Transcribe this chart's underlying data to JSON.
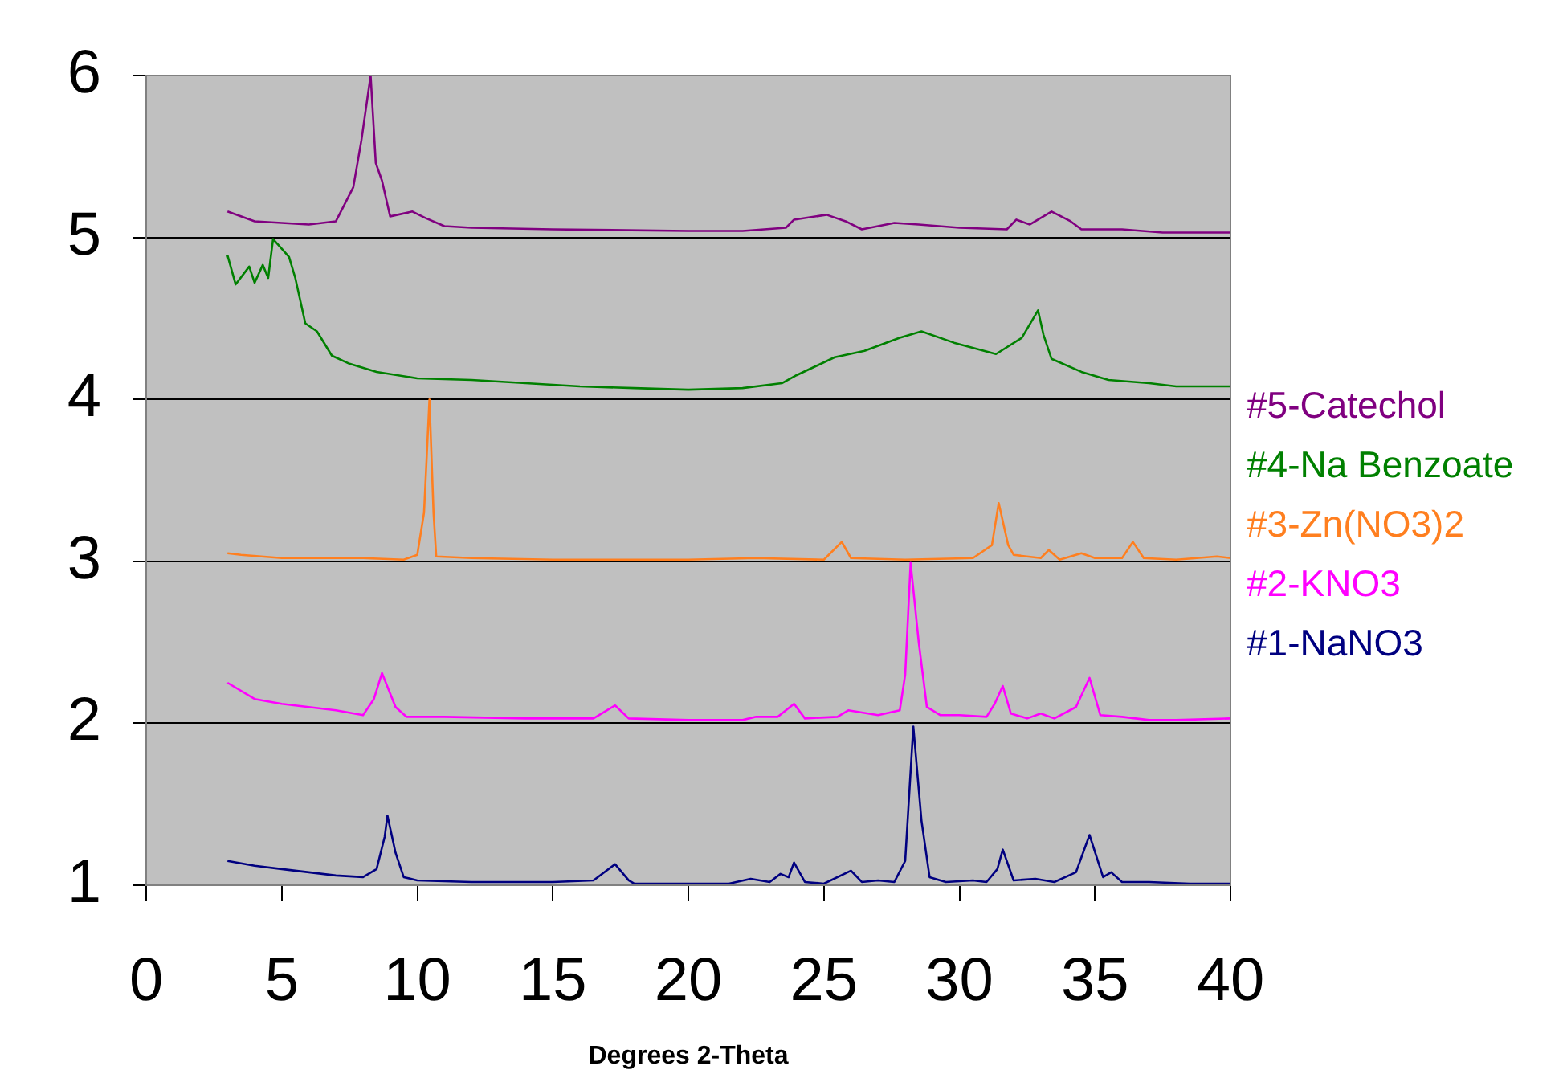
{
  "chart_data": {
    "type": "line",
    "xlabel": "Degrees 2-Theta",
    "xlim": [
      0,
      40
    ],
    "xticks": [
      0,
      5,
      10,
      15,
      20,
      25,
      30,
      35,
      40
    ],
    "ylim": [
      1,
      6
    ],
    "yticks": [
      1,
      2,
      3,
      4,
      5,
      6
    ],
    "grid": "y",
    "legend": "right",
    "marker": "none",
    "line_style": "solid",
    "series": [
      {
        "name": "#1-NaNO3",
        "color": "#000080",
        "x": [
          3,
          4,
          5,
          6,
          7,
          8,
          8.5,
          8.8,
          8.9,
          9.2,
          9.5,
          10,
          12,
          15,
          16.5,
          17.3,
          17.8,
          18,
          20,
          21.5,
          22.3,
          23,
          23.4,
          23.7,
          23.9,
          24.3,
          25,
          26,
          26.4,
          27,
          27.6,
          28,
          28.3,
          28.6,
          28.9,
          29.5,
          30.5,
          31,
          31.4,
          31.6,
          32,
          32.8,
          33.5,
          34.3,
          34.8,
          35.3,
          35.6,
          36,
          37,
          38.5,
          40
        ],
        "values": [
          1.15,
          1.12,
          1.1,
          1.08,
          1.06,
          1.05,
          1.1,
          1.3,
          1.43,
          1.2,
          1.05,
          1.03,
          1.02,
          1.02,
          1.03,
          1.13,
          1.03,
          1.01,
          1.01,
          1.01,
          1.04,
          1.02,
          1.07,
          1.05,
          1.14,
          1.02,
          1.01,
          1.09,
          1.02,
          1.03,
          1.02,
          1.15,
          1.98,
          1.4,
          1.05,
          1.02,
          1.03,
          1.02,
          1.1,
          1.22,
          1.03,
          1.04,
          1.02,
          1.08,
          1.31,
          1.05,
          1.08,
          1.02,
          1.02,
          1.01,
          1.01
        ]
      },
      {
        "name": "#2-KNO3",
        "color": "#ff00ff",
        "x": [
          3,
          4,
          5,
          6,
          7,
          8,
          8.4,
          8.7,
          9.2,
          9.6,
          11,
          14,
          16.5,
          17.3,
          17.8,
          20,
          22,
          22.5,
          23.3,
          23.9,
          24.3,
          25.5,
          25.9,
          27,
          27.8,
          28,
          28.2,
          28.5,
          28.8,
          29.3,
          30,
          31,
          31.3,
          31.6,
          31.9,
          32.5,
          33,
          33.5,
          34.3,
          34.8,
          35.2,
          36,
          37,
          38,
          40
        ],
        "values": [
          2.25,
          2.15,
          2.12,
          2.1,
          2.08,
          2.05,
          2.15,
          2.31,
          2.1,
          2.04,
          2.04,
          2.03,
          2.03,
          2.11,
          2.03,
          2.02,
          2.02,
          2.04,
          2.04,
          2.12,
          2.03,
          2.04,
          2.08,
          2.05,
          2.08,
          2.3,
          2.99,
          2.5,
          2.1,
          2.05,
          2.05,
          2.04,
          2.12,
          2.23,
          2.06,
          2.03,
          2.06,
          2.03,
          2.1,
          2.28,
          2.05,
          2.04,
          2.02,
          2.02,
          2.03
        ]
      },
      {
        "name": "#3-Zn(NO3)2",
        "color": "#ff7f1f",
        "x": [
          3,
          3.5,
          5,
          8,
          9.5,
          10,
          10.25,
          10.45,
          10.6,
          10.7,
          12,
          15,
          20,
          22.5,
          25,
          25.66,
          26,
          28,
          30.5,
          31.2,
          31.45,
          31.8,
          32,
          33,
          33.3,
          33.7,
          34.5,
          35,
          36,
          36.4,
          36.8,
          38,
          39.5,
          40
        ],
        "values": [
          3.05,
          3.04,
          3.02,
          3.02,
          3.01,
          3.04,
          3.3,
          4.0,
          3.3,
          3.03,
          3.02,
          3.01,
          3.01,
          3.02,
          3.01,
          3.12,
          3.02,
          3.01,
          3.02,
          3.1,
          3.36,
          3.1,
          3.04,
          3.02,
          3.07,
          3.01,
          3.05,
          3.02,
          3.02,
          3.12,
          3.02,
          3.01,
          3.03,
          3.02
        ]
      },
      {
        "name": "#4-Na Benzoate",
        "color": "#008000",
        "x": [
          3,
          3.3,
          3.8,
          4,
          4.3,
          4.5,
          4.68,
          5,
          5.27,
          5.5,
          5.87,
          6.3,
          6.85,
          7.5,
          8.5,
          10,
          12,
          14,
          16,
          18,
          20,
          22,
          23.45,
          24,
          25.4,
          26.5,
          27.8,
          28.6,
          29.8,
          31.35,
          32.3,
          32.9,
          33.1,
          33.4,
          34.5,
          35.5,
          37,
          38,
          40
        ],
        "values": [
          4.89,
          4.71,
          4.82,
          4.72,
          4.83,
          4.75,
          4.99,
          4.93,
          4.88,
          4.75,
          4.47,
          4.42,
          4.27,
          4.22,
          4.17,
          4.13,
          4.12,
          4.1,
          4.08,
          4.07,
          4.06,
          4.07,
          4.1,
          4.15,
          4.26,
          4.3,
          4.38,
          4.42,
          4.35,
          4.28,
          4.38,
          4.55,
          4.4,
          4.25,
          4.17,
          4.12,
          4.1,
          4.08,
          4.08
        ]
      },
      {
        "name": "#5-Catechol",
        "color": "#800080",
        "x": [
          3,
          4,
          5,
          6,
          7,
          7.64,
          7.94,
          8.28,
          8.47,
          8.7,
          9,
          9.82,
          10.3,
          11,
          12,
          15,
          20,
          22,
          23.6,
          23.9,
          25.1,
          25.8,
          26.4,
          27.6,
          28.5,
          30,
          31.75,
          32.1,
          32.6,
          33.4,
          34.1,
          34.5,
          36,
          37.5,
          40
        ],
        "values": [
          5.16,
          5.1,
          5.09,
          5.08,
          5.1,
          5.31,
          5.6,
          6.0,
          5.46,
          5.35,
          5.13,
          5.16,
          5.12,
          5.07,
          5.06,
          5.05,
          5.04,
          5.04,
          5.06,
          5.11,
          5.14,
          5.1,
          5.05,
          5.09,
          5.08,
          5.06,
          5.05,
          5.11,
          5.08,
          5.16,
          5.1,
          5.05,
          5.05,
          5.03,
          5.03
        ]
      }
    ]
  }
}
